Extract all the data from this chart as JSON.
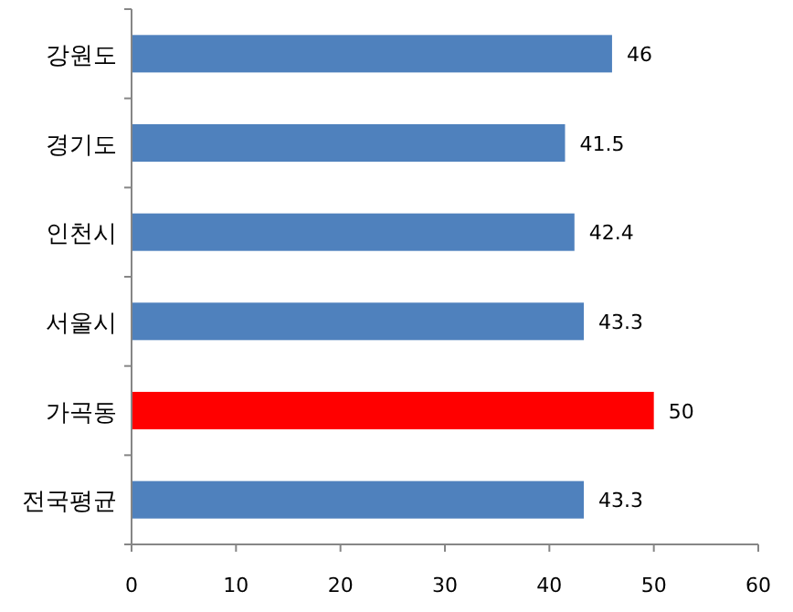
{
  "chart_data": {
    "type": "bar",
    "orientation": "horizontal",
    "categories": [
      "강원도",
      "경기도",
      "인천시",
      "서울시",
      "가곡동",
      "전국평균"
    ],
    "values": [
      46,
      41.5,
      42.4,
      43.3,
      50,
      43.3
    ],
    "colors": [
      "#4f81bd",
      "#4f81bd",
      "#4f81bd",
      "#4f81bd",
      "#ff0000",
      "#4f81bd"
    ],
    "xlim": [
      0,
      60
    ],
    "xticks": [
      0,
      10,
      20,
      30,
      40,
      50,
      60
    ],
    "data_labels": true
  }
}
